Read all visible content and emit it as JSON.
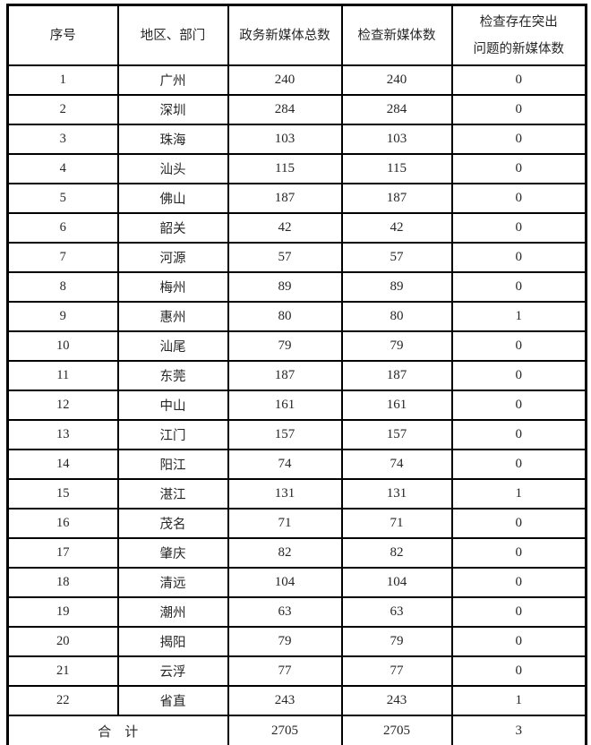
{
  "accent_colors": {
    "border": "#000000",
    "text": "#262626",
    "background": "#ffffff"
  },
  "table": {
    "columns": [
      {
        "id": "index",
        "lines": [
          "序号"
        ]
      },
      {
        "id": "region",
        "lines": [
          "地区、部门"
        ]
      },
      {
        "id": "total",
        "lines": [
          "政务新媒体总数"
        ]
      },
      {
        "id": "checked",
        "lines": [
          "检查新媒体数"
        ]
      },
      {
        "id": "problems",
        "lines": [
          "检查存在突出",
          "问题的新媒体数"
        ]
      }
    ],
    "rows": [
      {
        "index": "1",
        "region": "广州",
        "total": "240",
        "checked": "240",
        "problems": "0"
      },
      {
        "index": "2",
        "region": "深圳",
        "total": "284",
        "checked": "284",
        "problems": "0"
      },
      {
        "index": "3",
        "region": "珠海",
        "total": "103",
        "checked": "103",
        "problems": "0"
      },
      {
        "index": "4",
        "region": "汕头",
        "total": "115",
        "checked": "115",
        "problems": "0"
      },
      {
        "index": "5",
        "region": "佛山",
        "total": "187",
        "checked": "187",
        "problems": "0"
      },
      {
        "index": "6",
        "region": "韶关",
        "total": "42",
        "checked": "42",
        "problems": "0"
      },
      {
        "index": "7",
        "region": "河源",
        "total": "57",
        "checked": "57",
        "problems": "0"
      },
      {
        "index": "8",
        "region": "梅州",
        "total": "89",
        "checked": "89",
        "problems": "0"
      },
      {
        "index": "9",
        "region": "惠州",
        "total": "80",
        "checked": "80",
        "problems": "1"
      },
      {
        "index": "10",
        "region": "汕尾",
        "total": "79",
        "checked": "79",
        "problems": "0"
      },
      {
        "index": "11",
        "region": "东莞",
        "total": "187",
        "checked": "187",
        "problems": "0"
      },
      {
        "index": "12",
        "region": "中山",
        "total": "161",
        "checked": "161",
        "problems": "0"
      },
      {
        "index": "13",
        "region": "江门",
        "total": "157",
        "checked": "157",
        "problems": "0"
      },
      {
        "index": "14",
        "region": "阳江",
        "total": "74",
        "checked": "74",
        "problems": "0"
      },
      {
        "index": "15",
        "region": "湛江",
        "total": "131",
        "checked": "131",
        "problems": "1"
      },
      {
        "index": "16",
        "region": "茂名",
        "total": "71",
        "checked": "71",
        "problems": "0"
      },
      {
        "index": "17",
        "region": "肇庆",
        "total": "82",
        "checked": "82",
        "problems": "0"
      },
      {
        "index": "18",
        "region": "清远",
        "total": "104",
        "checked": "104",
        "problems": "0"
      },
      {
        "index": "19",
        "region": "潮州",
        "total": "63",
        "checked": "63",
        "problems": "0"
      },
      {
        "index": "20",
        "region": "揭阳",
        "total": "79",
        "checked": "79",
        "problems": "0"
      },
      {
        "index": "21",
        "region": "云浮",
        "total": "77",
        "checked": "77",
        "problems": "0"
      },
      {
        "index": "22",
        "region": "省直",
        "total": "243",
        "checked": "243",
        "problems": "1"
      }
    ],
    "footer": {
      "label": "合　计",
      "total": "2705",
      "checked": "2705",
      "problems": "3"
    }
  }
}
